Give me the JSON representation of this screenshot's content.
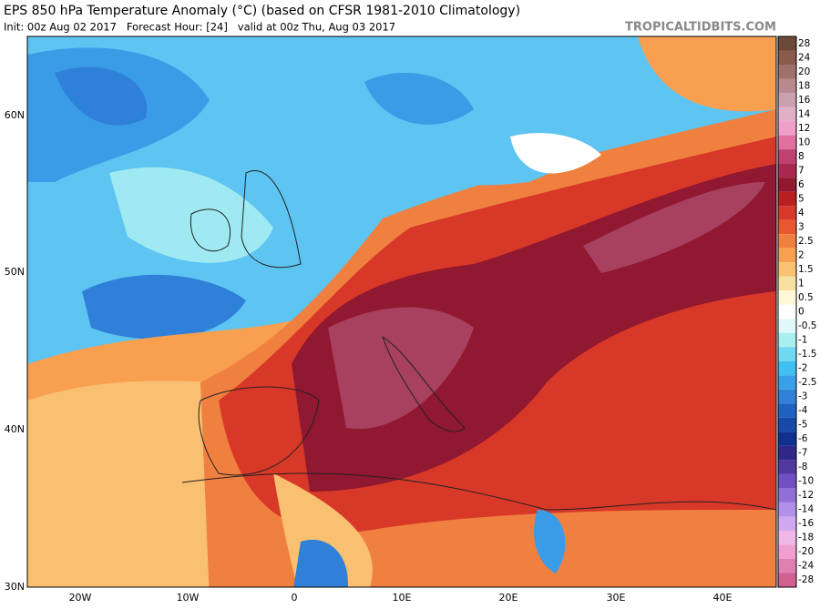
{
  "header": {
    "title": "EPS 850 hPa Temperature Anomaly (°C) (based on CFSR 1981-2010 Climatology)",
    "subtitle": "Init: 00z Aug 02 2017   Forecast Hour: [24]   valid at 00z Thu, Aug 03 2017",
    "site": "TROPICALTIDBITS.COM"
  },
  "map": {
    "lat_labels": [
      "60N",
      "50N",
      "40N",
      "30N"
    ],
    "lon_labels": [
      "20W",
      "10W",
      "0",
      "10E",
      "20E",
      "30E",
      "40E"
    ]
  },
  "colorbar": [
    {
      "label": "28",
      "color": "#6b4a3a"
    },
    {
      "label": "24",
      "color": "#8a5a4a"
    },
    {
      "label": "20",
      "color": "#a0706a"
    },
    {
      "label": "18",
      "color": "#b88a90"
    },
    {
      "label": "16",
      "color": "#c8a0b0"
    },
    {
      "label": "14",
      "color": "#e0b0c8"
    },
    {
      "label": "12",
      "color": "#f0a0c8"
    },
    {
      "label": "10",
      "color": "#e070a0"
    },
    {
      "label": "8",
      "color": "#c04070"
    },
    {
      "label": "7",
      "color": "#a82850"
    },
    {
      "label": "6",
      "color": "#901830"
    },
    {
      "label": "5",
      "color": "#b82020"
    },
    {
      "label": "4",
      "color": "#d83828"
    },
    {
      "label": "3",
      "color": "#e85830"
    },
    {
      "label": "2.5",
      "color": "#f08040"
    },
    {
      "label": "2",
      "color": "#f8a050"
    },
    {
      "label": "1.5",
      "color": "#f8c070"
    },
    {
      "label": "1",
      "color": "#f8e0a0"
    },
    {
      "label": "0.5",
      "color": "#fff8d8"
    },
    {
      "label": "0",
      "color": "#ffffff"
    },
    {
      "label": "-0.5",
      "color": "#e0f8f8"
    },
    {
      "label": "-1",
      "color": "#a8f0f0"
    },
    {
      "label": "-1.5",
      "color": "#70d8f0"
    },
    {
      "label": "-2",
      "color": "#40c0f0"
    },
    {
      "label": "-2.5",
      "color": "#38a0e8"
    },
    {
      "label": "-3",
      "color": "#3080d8"
    },
    {
      "label": "-4",
      "color": "#2060c0"
    },
    {
      "label": "-5",
      "color": "#1848a8"
    },
    {
      "label": "-6",
      "color": "#103090"
    },
    {
      "label": "-7",
      "color": "#302888"
    },
    {
      "label": "-8",
      "color": "#5038a0"
    },
    {
      "label": "-10",
      "color": "#7050c0"
    },
    {
      "label": "-12",
      "color": "#9070d8"
    },
    {
      "label": "-14",
      "color": "#b090e8"
    },
    {
      "label": "-16",
      "color": "#d0a8f0"
    },
    {
      "label": "-18",
      "color": "#f0b8e8"
    },
    {
      "label": "-20",
      "color": "#f0a0d0"
    },
    {
      "label": "-24",
      "color": "#e080b0"
    },
    {
      "label": "-28",
      "color": "#d06090"
    }
  ]
}
